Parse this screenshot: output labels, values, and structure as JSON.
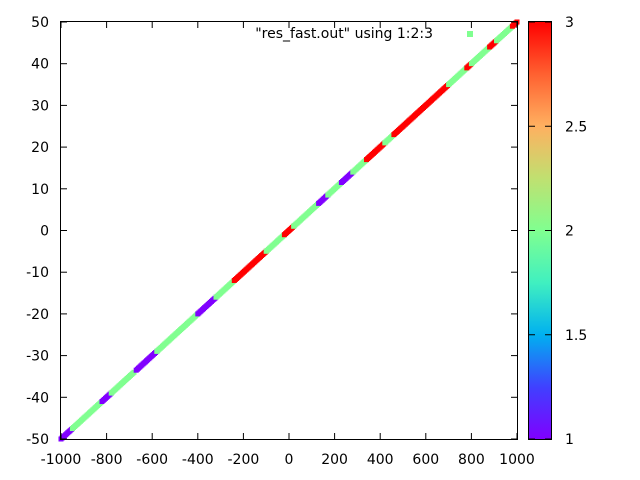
{
  "chart_data": {
    "type": "scatter",
    "title": "",
    "xlabel": "",
    "ylabel": "",
    "xlim": [
      -1000,
      1000
    ],
    "ylim": [
      -50,
      50
    ],
    "xticks": [
      -1000,
      -800,
      -600,
      -400,
      -200,
      0,
      200,
      400,
      600,
      800,
      1000
    ],
    "xtick_labels": [
      "-1000",
      "-800",
      "-600",
      "-400",
      "-200",
      "0",
      "200",
      "400",
      "600",
      "800",
      "1000"
    ],
    "yticks": [
      -50,
      -40,
      -30,
      -20,
      -10,
      0,
      10,
      20,
      30,
      40,
      50
    ],
    "ytick_labels": [
      "-50",
      "-40",
      "-30",
      "-20",
      "-10",
      "0",
      "10",
      "20",
      "30",
      "40",
      "50"
    ],
    "grid": false,
    "legend": {
      "label": "\"res_fast.out\" using 1:2:3",
      "placement": "top-right"
    },
    "colorbar": {
      "range": [
        1,
        3
      ],
      "ticks": [
        1,
        1.5,
        2,
        2.5,
        3
      ],
      "tick_labels": [
        "1",
        "1.5",
        "2",
        "2.5",
        "3"
      ],
      "palette": "rainbow"
    },
    "color_segments": [
      {
        "x_range": [
          -1000,
          -950
        ],
        "value": 1
      },
      {
        "x_range": [
          -950,
          -820
        ],
        "value": 2
      },
      {
        "x_range": [
          -820,
          -780
        ],
        "value": 1
      },
      {
        "x_range": [
          -780,
          -680
        ],
        "value": 2
      },
      {
        "x_range": [
          -670,
          -580
        ],
        "value": 1
      },
      {
        "x_range": [
          -580,
          -400
        ],
        "value": 2
      },
      {
        "x_range": [
          -400,
          -320
        ],
        "value": 1
      },
      {
        "x_range": [
          -320,
          -240
        ],
        "value": 2
      },
      {
        "x_range": [
          -240,
          -100
        ],
        "value": 3
      },
      {
        "x_range": [
          -100,
          -20
        ],
        "value": 2
      },
      {
        "x_range": [
          -20,
          20
        ],
        "value": 3
      },
      {
        "x_range": [
          20,
          130
        ],
        "value": 2
      },
      {
        "x_range": [
          130,
          170
        ],
        "value": 1
      },
      {
        "x_range": [
          170,
          230
        ],
        "value": 2
      },
      {
        "x_range": [
          230,
          280
        ],
        "value": 1
      },
      {
        "x_range": [
          280,
          340
        ],
        "value": 2
      },
      {
        "x_range": [
          340,
          420
        ],
        "value": 3
      },
      {
        "x_range": [
          420,
          460
        ],
        "value": 2
      },
      {
        "x_range": [
          460,
          700
        ],
        "value": 3
      },
      {
        "x_range": [
          700,
          780
        ],
        "value": 2
      },
      {
        "x_range": [
          780,
          800
        ],
        "value": 3
      },
      {
        "x_range": [
          800,
          880
        ],
        "value": 2
      },
      {
        "x_range": [
          880,
          910
        ],
        "value": 3
      },
      {
        "x_range": [
          910,
          980
        ],
        "value": 2
      },
      {
        "x_range": [
          980,
          1000
        ],
        "value": 3
      }
    ]
  }
}
